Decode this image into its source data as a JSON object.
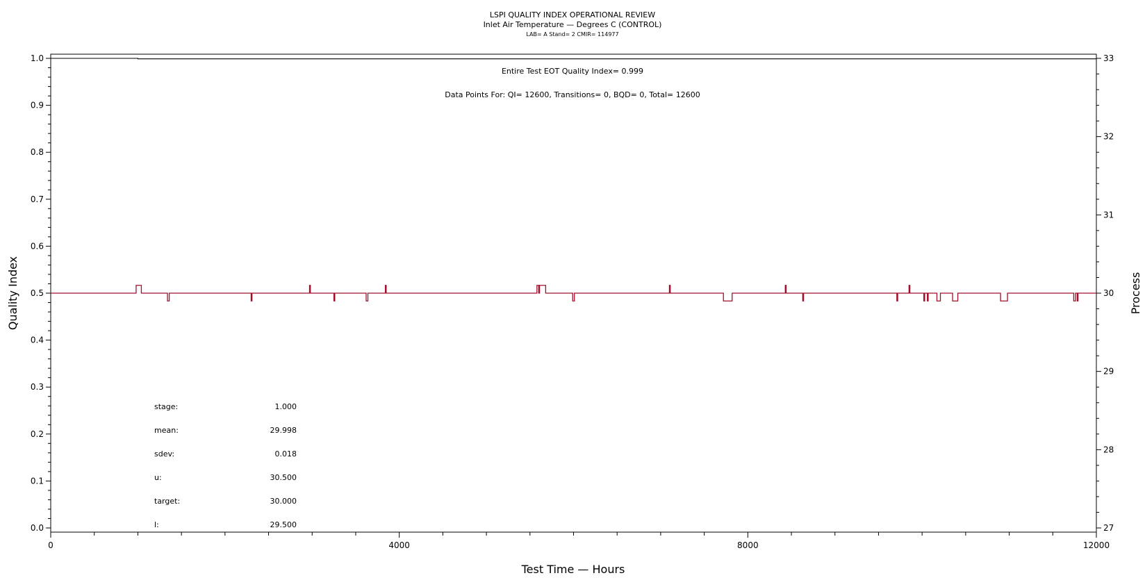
{
  "chart_data": {
    "type": "line",
    "title": "LSPI QUALITY INDEX OPERATIONAL REVIEW",
    "subtitle": "Inlet Air Temperature — Degrees C (CONTROL)",
    "info_line": "LAB= A Stand= 2 CMIR= 114977",
    "xlabel": "Test Time — Hours",
    "ylabel_left": "Quality Index",
    "ylabel_right": "Process",
    "xlim": [
      0,
      12000
    ],
    "ylim_left": [
      0.0,
      1.0
    ],
    "ylim_right": [
      27,
      33
    ],
    "x_ticks": [
      0,
      4000,
      8000,
      12000
    ],
    "x_tick_labels": [
      "0",
      "4000",
      "8000",
      "12000"
    ],
    "y_left_ticks": [
      0.0,
      0.1,
      0.2,
      0.3,
      0.4,
      0.5,
      0.6,
      0.7,
      0.8,
      0.9,
      1.0
    ],
    "y_left_tick_labels": [
      "0.0",
      "0.1",
      "0.2",
      "0.3",
      "0.4",
      "0.5",
      "0.6",
      "0.7",
      "0.8",
      "0.9",
      "1.0"
    ],
    "y_right_ticks": [
      27,
      28,
      29,
      30,
      31,
      32,
      33
    ],
    "y_right_tick_labels": [
      "27",
      "28",
      "29",
      "30",
      "31",
      "32",
      "33"
    ],
    "annotations": {
      "eot_quality": "Entire Test EOT Quality Index=   0.999",
      "data_points": "Data Points For: QI= 12600, Transitions=     0, BQD=     0, Total= 12600"
    },
    "stats": [
      {
        "label": "stage:",
        "value": "1.000"
      },
      {
        "label": "mean:",
        "value": "29.998"
      },
      {
        "label": "sdev:",
        "value": "0.018"
      },
      {
        "label": "u:",
        "value": "30.500"
      },
      {
        "label": "target:",
        "value": "30.000"
      },
      {
        "label": "l:",
        "value": "29.500"
      }
    ],
    "series": [
      {
        "axis": "left",
        "color": "#000000",
        "points": [
          [
            0,
            1.0
          ],
          [
            1000,
            1.0
          ],
          [
            1000,
            0.999
          ],
          [
            12000,
            0.999
          ]
        ]
      },
      {
        "axis": "right",
        "color": "#a0102a",
        "points": [
          [
            0,
            30.0
          ],
          [
            980,
            30.0
          ],
          [
            980,
            30.1
          ],
          [
            1040,
            30.1
          ],
          [
            1040,
            30.0
          ],
          [
            1340,
            30.0
          ],
          [
            1340,
            29.9
          ],
          [
            1360,
            29.9
          ],
          [
            1360,
            30.0
          ],
          [
            2300,
            30.0
          ],
          [
            2300,
            29.9
          ],
          [
            2310,
            29.9
          ],
          [
            2310,
            30.0
          ],
          [
            2970,
            30.0
          ],
          [
            2970,
            30.1
          ],
          [
            2980,
            30.1
          ],
          [
            2980,
            30.0
          ],
          [
            3250,
            30.0
          ],
          [
            3250,
            29.9
          ],
          [
            3260,
            29.9
          ],
          [
            3260,
            30.0
          ],
          [
            3620,
            30.0
          ],
          [
            3620,
            29.9
          ],
          [
            3640,
            29.9
          ],
          [
            3640,
            30.0
          ],
          [
            3840,
            30.0
          ],
          [
            3840,
            30.1
          ],
          [
            3850,
            30.1
          ],
          [
            3850,
            30.0
          ],
          [
            5580,
            30.0
          ],
          [
            5580,
            30.1
          ],
          [
            5600,
            30.1
          ],
          [
            5600,
            30.0
          ],
          [
            5610,
            30.0
          ],
          [
            5610,
            30.1
          ],
          [
            5680,
            30.1
          ],
          [
            5680,
            30.0
          ],
          [
            5990,
            30.0
          ],
          [
            5990,
            29.9
          ],
          [
            6010,
            29.9
          ],
          [
            6010,
            30.0
          ],
          [
            7100,
            30.0
          ],
          [
            7100,
            30.1
          ],
          [
            7110,
            30.1
          ],
          [
            7110,
            30.0
          ],
          [
            7720,
            30.0
          ],
          [
            7720,
            29.9
          ],
          [
            7820,
            29.9
          ],
          [
            7820,
            30.0
          ],
          [
            8430,
            30.0
          ],
          [
            8430,
            30.1
          ],
          [
            8440,
            30.1
          ],
          [
            8440,
            30.0
          ],
          [
            8630,
            30.0
          ],
          [
            8630,
            29.9
          ],
          [
            8640,
            29.9
          ],
          [
            8640,
            30.0
          ],
          [
            9710,
            30.0
          ],
          [
            9710,
            29.9
          ],
          [
            9720,
            29.9
          ],
          [
            9720,
            30.0
          ],
          [
            9850,
            30.0
          ],
          [
            9850,
            30.1
          ],
          [
            9860,
            30.1
          ],
          [
            9860,
            30.0
          ],
          [
            10020,
            30.0
          ],
          [
            10020,
            29.9
          ],
          [
            10030,
            29.9
          ],
          [
            10030,
            30.0
          ],
          [
            10060,
            30.0
          ],
          [
            10060,
            29.9
          ],
          [
            10070,
            29.9
          ],
          [
            10070,
            30.0
          ],
          [
            10170,
            30.0
          ],
          [
            10170,
            29.9
          ],
          [
            10210,
            29.9
          ],
          [
            10210,
            30.0
          ],
          [
            10350,
            30.0
          ],
          [
            10350,
            29.9
          ],
          [
            10410,
            29.9
          ],
          [
            10410,
            30.0
          ],
          [
            10900,
            30.0
          ],
          [
            10900,
            29.9
          ],
          [
            10980,
            29.9
          ],
          [
            10980,
            30.0
          ],
          [
            11740,
            30.0
          ],
          [
            11740,
            29.9
          ],
          [
            11760,
            29.9
          ],
          [
            11760,
            30.0
          ],
          [
            11780,
            30.0
          ],
          [
            11780,
            29.9
          ],
          [
            11790,
            29.9
          ],
          [
            11790,
            30.0
          ],
          [
            12000,
            30.0
          ]
        ]
      }
    ]
  }
}
